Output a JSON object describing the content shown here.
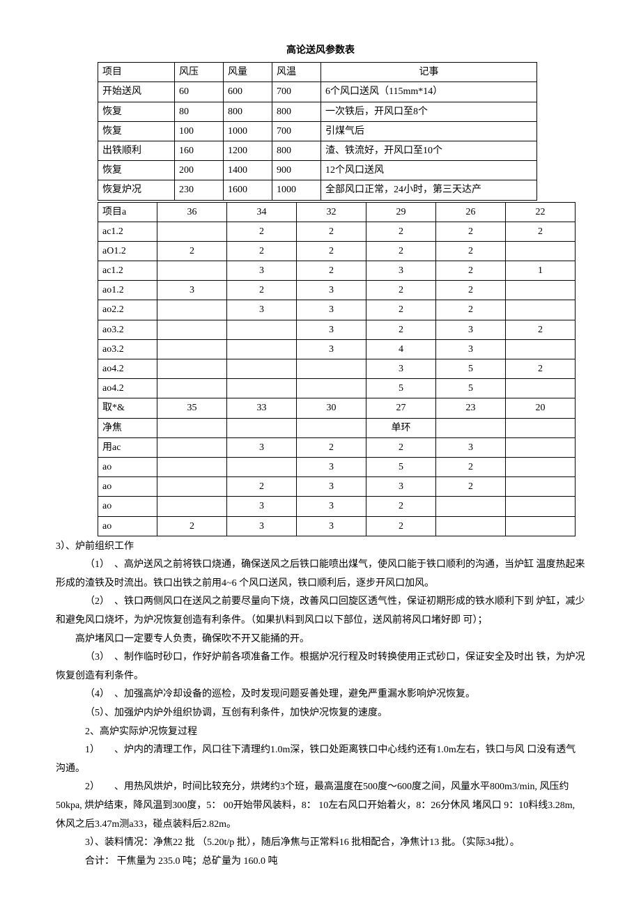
{
  "title": "高论送风参数表",
  "table1": {
    "headers": [
      "项目",
      "风压",
      "风量",
      "风温",
      "记事"
    ],
    "rows": [
      [
        "开始送风",
        "60",
        "600",
        "700",
        "6个风口送风（115mm*14）"
      ],
      [
        "恢复",
        "80",
        "800",
        "800",
        "一次铁后，开风口至8个"
      ],
      [
        "恢复",
        "100",
        "1000",
        "700",
        "引煤气后"
      ],
      [
        "出铁顺利",
        "160",
        "1200",
        "800",
        "渣、铁流好，开风口至10个"
      ],
      [
        "恢复",
        "200",
        "1400",
        "900",
        "12个风口送风"
      ],
      [
        "恢复炉况",
        "230",
        "1600",
        "1000",
        "全部风口正常，24小时，第三天达产"
      ]
    ]
  },
  "table2": {
    "rows": [
      [
        "项目a",
        "36",
        "34",
        "32",
        "29",
        "26",
        "22"
      ],
      [
        "ac1.2",
        "",
        "2",
        "2",
        "2",
        "2",
        "2"
      ],
      [
        "aO1.2",
        "2",
        "2",
        "2",
        "2",
        "2",
        ""
      ],
      [
        "ac1.2",
        "",
        "3",
        "2",
        "3",
        "2",
        "1"
      ],
      [
        "ao1.2",
        "3",
        "2",
        "3",
        "2",
        "2",
        ""
      ],
      [
        "ao2.2",
        "",
        "3",
        "3",
        "2",
        "2",
        ""
      ],
      [
        "ao3.2",
        "",
        "",
        "3",
        "2",
        "3",
        "2"
      ],
      [
        "ao3.2",
        "",
        "",
        "3",
        "4",
        "3",
        ""
      ],
      [
        "ao4.2",
        "",
        "",
        "",
        "3",
        "5",
        "2"
      ],
      [
        "ao4.2",
        "",
        "",
        "",
        "5",
        "5",
        ""
      ],
      [
        "取*&",
        "35",
        "33",
        "30",
        "27",
        "23",
        "20"
      ],
      [
        "净焦",
        "",
        "",
        "",
        "单环",
        "",
        ""
      ],
      [
        "用ac",
        "",
        "3",
        "2",
        "2",
        "3",
        ""
      ],
      [
        "  ao",
        "",
        "",
        "3",
        "5",
        "2",
        ""
      ],
      [
        "  ao",
        "",
        "2",
        "3",
        "3",
        "2",
        ""
      ],
      [
        "  ao",
        "",
        "3",
        "3",
        "2",
        "",
        ""
      ],
      [
        "  ao",
        "2",
        "3",
        "3",
        "2",
        "",
        ""
      ]
    ]
  },
  "body": {
    "h3": "3）、炉前组织工作",
    "p1": "（1）　、高炉送风之前将铁口烧通，确保送风之后铁口能喷出煤气，使风口能于铁口顺利的沟通，当炉缸  温度热起来形成的渣铁及时流出。铁口出铁之前用4~6 个风口送风，铁口顺利后，逐步开风口加风。",
    "p2": "（2）　、铁口两侧风口在送风之前要尽量向下烧，改善风口回旋区透气性，保证初期形成的铁水顺利下到  炉缸，减少和避免风口烧坏，为炉况恢复创造有利条件。（如果扒料到风口以下部位，送风前将风口堵好即  可）；",
    "p3": "高炉堵风口一定要专人负责，确保吹不开又能捅的开。",
    "p4": "（3）　、制作临时砂口，作好炉前各项准备工作。根据炉况行程及时转换使用正式砂口，保证安全及时出  铁，为炉况恢复创造有利条件。",
    "p5": "（4）　、加强高炉冷却设备的巡检，及时发现问题妥善处理，避免严重漏水影响炉况恢复。",
    "p6": "（5）、加强炉内炉外组织协调，互创有利条件，加快炉况恢复的速度。",
    "p7": "2、高炉实际炉况恢复过程",
    "p8": "1）　　、炉内的清理工作，风口往下清理约1.0m深，铁口处距离铁口中心线约还有1.0m左右，铁口与风  口没有透气沟通。",
    "p9": "2）　　、用热风烘炉，时间比较充分，烘烤约3个班，最高温度在500度～600度之间，风量水平800m3/min, 风压约50kpa, 烘炉结束，降风温到300度，5：  00开始带风装料，8：  10左右风口开始着火，8：26分休风  堵风口  9：10料线3.28m, 休风之后3.47m测a33，碰点装料后2.82m。",
    "p10": "3）、装料情况：净焦22 批  （5.20t/p 批），随后净焦与正常料16 批相配合，净焦计13 批。（实际34批）。",
    "p11": "合计：  干焦量为  235.0 吨；总矿量为  160.0 吨"
  }
}
